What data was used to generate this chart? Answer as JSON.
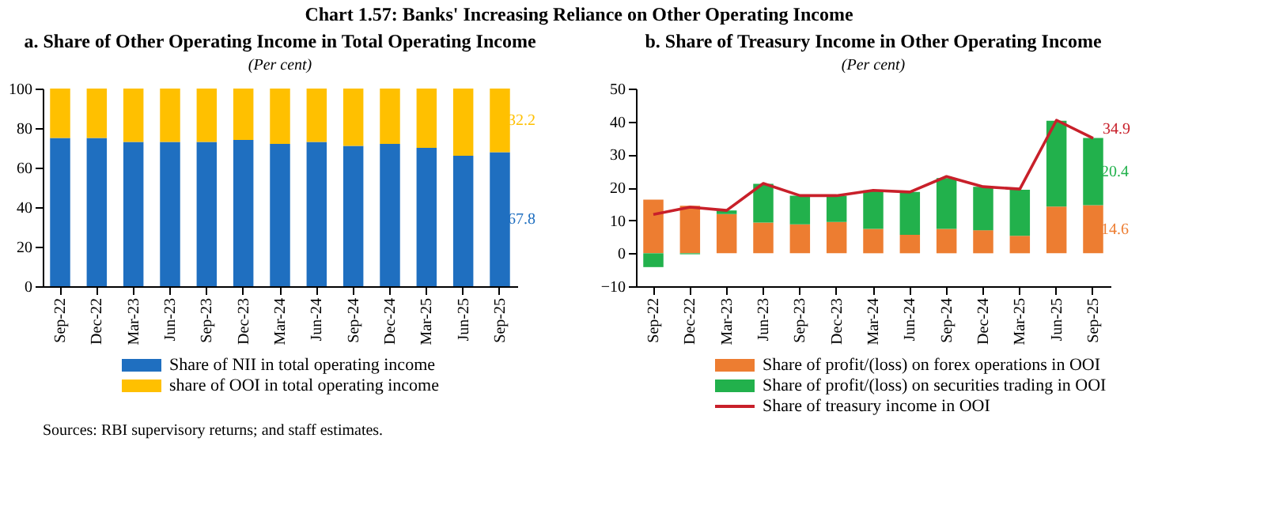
{
  "chart_data": [
    {
      "type": "bar",
      "title": "a. Share of Other Operating Income in Total Operating Income",
      "subtitle": "(Per cent)",
      "annotations": [
        "Chart 1.57: Banks' Increasing Reliance on Other Operating Income",
        "Sources: RBI supervisory returns; and staff estimates."
      ],
      "categories": [
        "Sep-22",
        "Dec-22",
        "Mar-23",
        "Jun-23",
        "Sep-23",
        "Dec-23",
        "Mar-24",
        "Jun-24",
        "Sep-24",
        "Dec-24",
        "Mar-25",
        "Jun-25",
        "Sep-25"
      ],
      "stacked": true,
      "ylim": [
        0,
        100
      ],
      "yticks": [
        0,
        20,
        40,
        60,
        80,
        100
      ],
      "grid": false,
      "legend": "bottom",
      "series": [
        {
          "name": "Share of NII in total operating income",
          "color": "#1f6fc0",
          "values": [
            75,
            75,
            73,
            73,
            73,
            74,
            72,
            73,
            71,
            72,
            70,
            66,
            67.8
          ],
          "value_labels": [
            null,
            null,
            null,
            null,
            null,
            null,
            null,
            null,
            null,
            null,
            null,
            null,
            "67.8"
          ]
        },
        {
          "name": "share of OOI in total operating income",
          "color": "#ffc000",
          "values": [
            25,
            25,
            27,
            27,
            27,
            26,
            28,
            27,
            29,
            28,
            30,
            34,
            32.2
          ],
          "value_labels": [
            null,
            null,
            null,
            null,
            null,
            null,
            null,
            null,
            null,
            null,
            null,
            null,
            "32.2"
          ]
        }
      ]
    },
    {
      "type": "bar",
      "title": "b. Share of Treasury Income in Other Operating Income",
      "subtitle": "(Per cent)",
      "categories": [
        "Sep-22",
        "Dec-22",
        "Mar-23",
        "Jun-23",
        "Sep-23",
        "Dec-23",
        "Mar-24",
        "Jun-24",
        "Sep-24",
        "Dec-24",
        "Mar-25",
        "Jun-25",
        "Sep-25"
      ],
      "stacked": true,
      "ylim": [
        -10,
        50
      ],
      "yticks": [
        -10,
        0,
        10,
        20,
        30,
        40,
        50
      ],
      "grid": false,
      "legend": "bottom",
      "series": [
        {
          "name": "Share of profit/(loss) on forex operations in OOI",
          "color": "#ed7d31",
          "values": [
            16.3,
            14.4,
            11.9,
            9.3,
            8.8,
            9.5,
            7.4,
            5.6,
            7.4,
            7.0,
            5.3,
            14.2,
            14.6
          ],
          "value_labels": [
            null,
            null,
            null,
            null,
            null,
            null,
            null,
            null,
            null,
            null,
            null,
            null,
            "14.6"
          ]
        },
        {
          "name": "Share of profit/(loss) on securities trading in OOI",
          "color": "#22b14c",
          "values": [
            -4.2,
            -0.3,
            1.1,
            11.8,
            8.7,
            8.0,
            11.7,
            13.0,
            15.4,
            13.2,
            14.0,
            26.0,
            20.4
          ],
          "value_labels": [
            null,
            null,
            null,
            null,
            null,
            null,
            null,
            null,
            null,
            null,
            null,
            null,
            "20.4"
          ]
        },
        {
          "name": "Share of treasury income in OOI",
          "type": "line",
          "color": "#c8202a",
          "values": [
            11.8,
            14.0,
            13.0,
            21.2,
            17.5,
            17.5,
            19.1,
            18.6,
            23.3,
            20.2,
            19.5,
            40.4,
            34.9
          ],
          "value_labels": [
            null,
            null,
            null,
            null,
            null,
            null,
            null,
            null,
            null,
            null,
            null,
            null,
            "34.9"
          ]
        }
      ]
    }
  ]
}
